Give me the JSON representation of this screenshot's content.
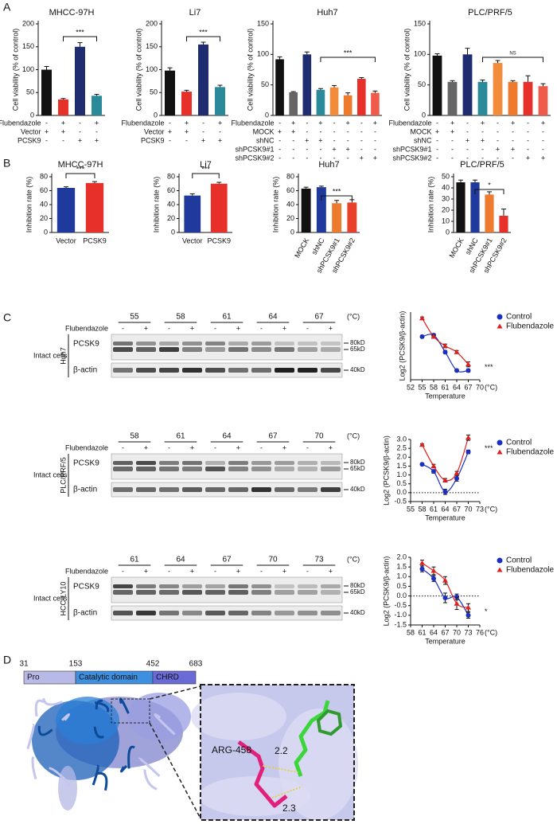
{
  "panels": [
    "A",
    "B",
    "C",
    "D"
  ],
  "chart_data": [
    {
      "type": "bar",
      "title": "MHCC-97H",
      "ylabel": "Cell viability (% of control)",
      "ylim": [
        0,
        200
      ],
      "yticks": [
        0,
        50,
        100,
        150,
        200
      ],
      "values": [
        100,
        35,
        150,
        43
      ],
      "errors": [
        7,
        2,
        9,
        3
      ],
      "colors": [
        "#111111",
        "#e8302a",
        "#1f2d70",
        "#2a8a9a"
      ],
      "annotation": "***",
      "rows": [
        {
          "label": "Flubendazole",
          "signs": [
            "-",
            "+",
            "-",
            "+"
          ]
        },
        {
          "label": "Vector",
          "signs": [
            "+",
            "+",
            "-",
            "-"
          ]
        },
        {
          "label": "PCSK9",
          "signs": [
            "-",
            "-",
            "+",
            "+"
          ]
        }
      ]
    },
    {
      "type": "bar",
      "title": "Li7",
      "ylabel": "Cell viability (% of control)",
      "ylim": [
        0,
        200
      ],
      "yticks": [
        0,
        50,
        100,
        150,
        200
      ],
      "values": [
        98,
        52,
        155,
        62
      ],
      "errors": [
        6,
        3,
        5,
        4
      ],
      "colors": [
        "#111111",
        "#e8302a",
        "#1f2d70",
        "#2a8a9a"
      ],
      "annotation": "***",
      "rows": [
        {
          "label": "Flubendazole",
          "signs": [
            "-",
            "+",
            "-",
            "+"
          ]
        },
        {
          "label": "Vector",
          "signs": [
            "+",
            "+",
            "-",
            "-"
          ]
        },
        {
          "label": "PCSK9",
          "signs": [
            "-",
            "-",
            "+",
            "+"
          ]
        }
      ]
    },
    {
      "type": "bar",
      "title": "Huh7",
      "ylabel": "Cell viability (% of control)",
      "ylim": [
        0,
        150
      ],
      "yticks": [
        0,
        50,
        100,
        150
      ],
      "values": [
        92,
        38,
        100,
        42,
        46,
        33,
        60,
        37
      ],
      "errors": [
        4,
        1,
        4,
        2,
        3,
        4,
        2,
        3
      ],
      "colors": [
        "#111111",
        "#666666",
        "#1f2d70",
        "#2a8a9a",
        "#f28c3a",
        "#ee7a2e",
        "#e8302a",
        "#f05a4a"
      ],
      "annotation": "***",
      "rows": [
        {
          "label": "Flubendazole",
          "signs": [
            "-",
            "+",
            "-",
            "+",
            "-",
            "+",
            "-",
            "+"
          ]
        },
        {
          "label": "MOCK",
          "signs": [
            "+",
            "+",
            "-",
            "-",
            "-",
            "-",
            "-",
            "-"
          ]
        },
        {
          "label": "shNC",
          "signs": [
            "-",
            "-",
            "+",
            "+",
            "-",
            "-",
            "-",
            "-"
          ]
        },
        {
          "label": "shPCSK9#1",
          "signs": [
            "-",
            "-",
            "-",
            "-",
            "+",
            "+",
            "-",
            "-"
          ]
        },
        {
          "label": "shPCSK9#2",
          "signs": [
            "-",
            "-",
            "-",
            "-",
            "-",
            "-",
            "+",
            "+"
          ]
        }
      ]
    },
    {
      "type": "bar",
      "title": "PLC/PRF/5",
      "ylabel": "Cell viability (% of control)",
      "ylim": [
        0,
        150
      ],
      "yticks": [
        0,
        50,
        100,
        150
      ],
      "values": [
        98,
        55,
        100,
        55,
        86,
        55,
        55,
        48
      ],
      "errors": [
        3,
        2,
        10,
        3,
        4,
        2,
        10,
        4
      ],
      "colors": [
        "#111111",
        "#666666",
        "#1f2d70",
        "#2a8a9a",
        "#f28c3a",
        "#ee7a2e",
        "#e8302a",
        "#f05a4a"
      ],
      "annotation": "NS",
      "rows": [
        {
          "label": "Flubendazole",
          "signs": [
            "-",
            "+",
            "-",
            "+",
            "-",
            "+",
            "-",
            "+"
          ]
        },
        {
          "label": "MOCK",
          "signs": [
            "+",
            "+",
            "-",
            "-",
            "-",
            "-",
            "-",
            "-"
          ]
        },
        {
          "label": "shNC",
          "signs": [
            "-",
            "-",
            "+",
            "+",
            "-",
            "-",
            "-",
            "-"
          ]
        },
        {
          "label": "shPCSK9#1",
          "signs": [
            "-",
            "-",
            "-",
            "-",
            "+",
            "+",
            "-",
            "-"
          ]
        },
        {
          "label": "shPCSK9#2",
          "signs": [
            "-",
            "-",
            "-",
            "-",
            "-",
            "-",
            "+",
            "+"
          ]
        }
      ]
    },
    {
      "type": "bar",
      "title": "MHCC-97H",
      "ylabel": "Inhibition rate (%)",
      "ylim": [
        0,
        80
      ],
      "yticks": [
        0,
        20,
        40,
        60,
        80
      ],
      "categories": [
        "Vector",
        "PCSK9"
      ],
      "values": [
        64,
        71
      ],
      "errors": [
        1.5,
        2
      ],
      "colors": [
        "#1f3a9c",
        "#e8302a"
      ],
      "annotation": "***"
    },
    {
      "type": "bar",
      "title": "Li7",
      "ylabel": "Inhibition rate (%)",
      "ylim": [
        0,
        80
      ],
      "yticks": [
        0,
        20,
        40,
        60,
        80
      ],
      "categories": [
        "Vector",
        "PCSK9"
      ],
      "values": [
        53,
        70
      ],
      "errors": [
        2.5,
        2
      ],
      "colors": [
        "#1f3a9c",
        "#e8302a"
      ],
      "annotation": "***"
    },
    {
      "type": "bar",
      "title": "Huh7",
      "ylabel": "Inhibition rate (%)",
      "ylim": [
        0,
        80
      ],
      "yticks": [
        0,
        20,
        40,
        60,
        80
      ],
      "categories": [
        "MOCK",
        "shNC",
        "shPCSK9#1",
        "shPCSK9#2"
      ],
      "values": [
        63,
        65,
        42,
        43
      ],
      "errors": [
        2,
        1.5,
        4,
        4
      ],
      "colors": [
        "#111111",
        "#1f3a9c",
        "#ee7a2e",
        "#e8402a"
      ],
      "annotation": "***"
    },
    {
      "type": "bar",
      "title": "PLC/PRF/5",
      "ylabel": "Inhibition rate (%)",
      "ylim": [
        0,
        50
      ],
      "yticks": [
        0,
        10,
        20,
        30,
        40,
        50
      ],
      "categories": [
        "MOCK",
        "shNC",
        "shPCSK9#1",
        "shPCSK9#2"
      ],
      "values": [
        45,
        45,
        34,
        15
      ],
      "errors": [
        2,
        2,
        2.5,
        6
      ],
      "colors": [
        "#111111",
        "#1f3a9c",
        "#ee7a2e",
        "#e8302a"
      ],
      "annotation": "*"
    },
    {
      "type": "line",
      "ylabel": "Log2 (PCSK9/β-actin)",
      "xlabel": "Temperature",
      "xunit": "(°C)",
      "annotation": "***",
      "xlim": [
        52,
        70
      ],
      "xticks": [
        52,
        55,
        58,
        61,
        64,
        67,
        70
      ],
      "ylim": [
        1.0,
        3.2
      ],
      "zero_line": false,
      "series": [
        {
          "name": "Control",
          "color": "#1b2fc0",
          "marker": "circle",
          "x": [
            55,
            58,
            61,
            64,
            67
          ],
          "values": [
            2.4,
            2.45,
            1.9,
            1.3,
            1.3
          ],
          "errors": [
            0.04,
            0.05,
            0.05,
            0.04,
            0.05
          ]
        },
        {
          "name": "Flubendazole",
          "color": "#e02020",
          "marker": "triangle",
          "x": [
            55,
            58,
            61,
            64,
            67
          ],
          "values": [
            3.0,
            2.4,
            2.1,
            1.9,
            1.5
          ],
          "errors": [
            0.04,
            0.05,
            0.06,
            0.05,
            0.08
          ]
        }
      ]
    },
    {
      "type": "line",
      "ylabel": "Log2 (PCSK9/β-actin)",
      "xlabel": "Temperature",
      "xunit": "(°C)",
      "annotation": "***",
      "xlim": [
        55,
        73
      ],
      "xticks": [
        55,
        58,
        61,
        64,
        67,
        70,
        73
      ],
      "ylim": [
        -0.5,
        3.0
      ],
      "yticks": [
        {
          "value": -0.5,
          "label": "-0.5"
        },
        {
          "value": 0,
          "label": "0.0"
        },
        0.5,
        {
          "value": 1,
          "label": "1.0"
        },
        1.5,
        {
          "value": 2,
          "label": "2.0"
        },
        2.5,
        {
          "value": 3,
          "label": "3.0"
        }
      ],
      "zero_line": true,
      "series": [
        {
          "name": "Control",
          "color": "#1b2fc0",
          "marker": "circle",
          "x": [
            58,
            61,
            64,
            67,
            70
          ],
          "values": [
            1.6,
            1.2,
            0.05,
            0.8,
            2.3
          ],
          "errors": [
            0.05,
            0.1,
            0.15,
            0.15,
            0.1
          ]
        },
        {
          "name": "Flubendazole",
          "color": "#e02020",
          "marker": "triangle",
          "x": [
            58,
            61,
            64,
            67,
            70
          ],
          "values": [
            2.7,
            1.5,
            0.7,
            1.1,
            3.1
          ],
          "errors": [
            0.05,
            0.1,
            0.1,
            0.1,
            0.15
          ]
        }
      ]
    },
    {
      "type": "line",
      "ylabel": "Log2 (PCSK9/β-actin)",
      "xlabel": "Temperature",
      "xunit": "(°C)",
      "annotation": "*",
      "xlim": [
        58,
        76
      ],
      "xticks": [
        58,
        61,
        64,
        67,
        70,
        73,
        76
      ],
      "ylim": [
        -1.5,
        2.0
      ],
      "yticks": [
        {
          "value": -1.5,
          "label": "-1.5"
        },
        {
          "value": -1,
          "label": "-1.0"
        },
        -0.5,
        {
          "value": 0,
          "label": "0.0"
        },
        0.5,
        {
          "value": 1,
          "label": "1.0"
        },
        1.5,
        {
          "value": 2,
          "label": "2.0"
        }
      ],
      "zero_line": true,
      "series": [
        {
          "name": "Control",
          "color": "#1b2fc0",
          "marker": "circle",
          "x": [
            61,
            64,
            67,
            70,
            73
          ],
          "values": [
            1.4,
            0.9,
            -0.1,
            -0.05,
            -1.0
          ],
          "errors": [
            0.15,
            0.15,
            0.25,
            0.15,
            0.15
          ]
        },
        {
          "name": "Flubendazole",
          "color": "#e02020",
          "marker": "triangle",
          "x": [
            61,
            64,
            67,
            70,
            73
          ],
          "values": [
            1.7,
            1.3,
            0.8,
            -0.4,
            -0.6
          ],
          "errors": [
            0.15,
            0.2,
            0.2,
            0.3,
            0.2
          ]
        }
      ]
    }
  ],
  "blots": [
    {
      "temps": [
        55,
        58,
        61,
        64,
        67
      ],
      "unit": "(°C)",
      "treatment": "Flubendazole",
      "signs": [
        "-",
        "+"
      ],
      "group": "Intact cells",
      "cell_line": "Huh7",
      "proteins": [
        "PCSK9",
        "β-actin"
      ],
      "markers": [
        "80kD",
        "65kD",
        "40kD"
      ]
    },
    {
      "temps": [
        58,
        61,
        64,
        67,
        70
      ],
      "unit": "(°C)",
      "treatment": "Flubendazole",
      "signs": [
        "-",
        "+"
      ],
      "group": "Intact cells",
      "cell_line": "PLC/PRF/5",
      "proteins": [
        "PCSK9",
        "β-actin"
      ],
      "markers": [
        "80kD",
        "65kD",
        "40kD"
      ]
    },
    {
      "temps": [
        61,
        64,
        67,
        70,
        73
      ],
      "unit": "(°C)",
      "treatment": "Flubendazole",
      "signs": [
        "-",
        "+"
      ],
      "group": "Intact cells",
      "cell_line": "HCC-LY10",
      "proteins": [
        "PCSK9",
        "β-actin"
      ],
      "markers": [
        "80kD",
        "65kD",
        "40kD"
      ]
    }
  ],
  "domain": {
    "positions": [
      31,
      153,
      452,
      683
    ],
    "regions": [
      "Pro",
      "Catalytic domain",
      "CHRD"
    ]
  },
  "structure": {
    "residue": "ARG-458",
    "distances": [
      2.2,
      2.3
    ]
  }
}
